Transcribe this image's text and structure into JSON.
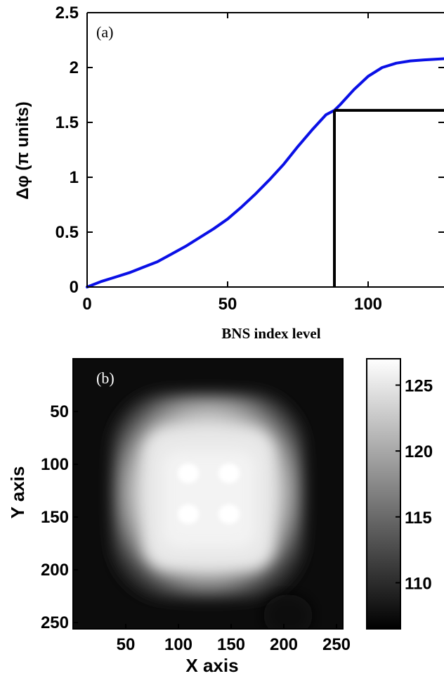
{
  "chart_data": [
    {
      "type": "line",
      "panel_label": "(a)",
      "xlabel": "BNS index level",
      "ylabel": "Δφ (π units)",
      "xlim": [
        0,
        127
      ],
      "ylim": [
        0,
        2.5
      ],
      "xticks": [
        "0",
        "50",
        "100"
      ],
      "yticks": [
        "0",
        "0.5",
        "1",
        "1.5",
        "2",
        "2.5"
      ],
      "grid": false,
      "series": [
        {
          "color": "#0a10e6",
          "x": [
            0,
            2,
            5,
            10,
            15,
            20,
            25,
            30,
            35,
            40,
            45,
            50,
            55,
            60,
            65,
            70,
            75,
            80,
            85,
            88,
            90,
            95,
            100,
            105,
            110,
            115,
            120,
            127
          ],
          "y": [
            0.0,
            0.02,
            0.05,
            0.09,
            0.13,
            0.18,
            0.23,
            0.3,
            0.37,
            0.45,
            0.53,
            0.62,
            0.73,
            0.85,
            0.98,
            1.12,
            1.28,
            1.43,
            1.57,
            1.61,
            1.66,
            1.8,
            1.92,
            2.0,
            2.04,
            2.06,
            2.07,
            2.08
          ]
        }
      ],
      "annotations": [
        {
          "type": "marker-lines",
          "x": 88,
          "y": 1.61,
          "color": "#000000"
        }
      ]
    },
    {
      "type": "heatmap",
      "panel_label": "(b)",
      "xlabel": "X axis",
      "ylabel": "Y axis",
      "xlim": [
        0,
        256
      ],
      "ylim": [
        256,
        0
      ],
      "xticks": [
        "50",
        "100",
        "150",
        "200",
        "250"
      ],
      "yticks": [
        "50",
        "100",
        "150",
        "200",
        "250"
      ],
      "colormap": "gray",
      "colorbar": {
        "ticks": [
          "110",
          "115",
          "120",
          "125"
        ],
        "range": [
          106.5,
          127
        ]
      },
      "description_values": {
        "min": 106.5,
        "max": 127
      }
    }
  ]
}
